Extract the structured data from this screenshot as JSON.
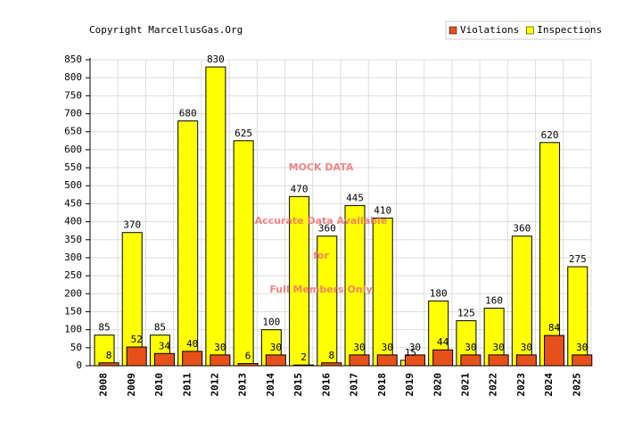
{
  "chart_data": {
    "type": "bar",
    "credit": "Copyright MarcellusGas.Org",
    "watermark": [
      "MOCK DATA",
      "Accurate Data Available",
      "for",
      "Full Members Only"
    ],
    "categories": [
      "2008",
      "2009",
      "2010",
      "2011",
      "2012",
      "2013",
      "2014",
      "2015",
      "2016",
      "2017",
      "2018",
      "2019",
      "2020",
      "2021",
      "2022",
      "2023",
      "2024",
      "2025"
    ],
    "series": [
      {
        "name": "Violations",
        "color": "#e8501a",
        "values": [
          8,
          52,
          34,
          40,
          30,
          6,
          30,
          2,
          8,
          30,
          30,
          30,
          44,
          30,
          30,
          30,
          84,
          30
        ]
      },
      {
        "name": "Inspections",
        "color": "#ffff00",
        "values": [
          85,
          370,
          85,
          680,
          830,
          625,
          100,
          470,
          360,
          445,
          410,
          15,
          180,
          125,
          160,
          360,
          620,
          275
        ]
      }
    ],
    "ylim": [
      0,
      850
    ],
    "yticks": [
      0,
      50,
      100,
      150,
      200,
      250,
      300,
      350,
      400,
      450,
      500,
      550,
      600,
      650,
      700,
      750,
      800,
      850
    ],
    "grid": true
  }
}
